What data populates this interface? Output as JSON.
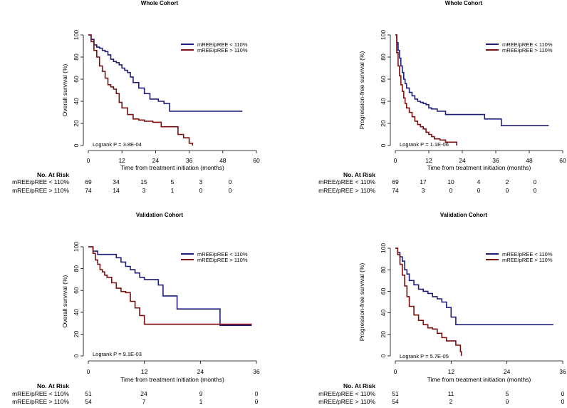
{
  "chart_data": [
    {
      "type": "line",
      "step": true,
      "title": "Whole Cohort",
      "xlabel": "Time from treatment initiation (months)",
      "ylabel": "Overall survival (%)",
      "xlim": [
        0,
        60
      ],
      "ylim": [
        0,
        100
      ],
      "xticks": [
        "0",
        "12",
        "24",
        "36",
        "48",
        "60"
      ],
      "yticks": [
        "0",
        "20",
        "40",
        "60",
        "80",
        "100"
      ],
      "annotation": "Logrank P = 3.8E-04",
      "legend_position": "top-right",
      "series": [
        {
          "name": "mREE/pREE < 110%",
          "color": "#1f1f7a",
          "x": [
            0,
            1,
            2,
            3,
            4,
            5,
            6,
            7,
            8,
            9,
            10,
            11,
            12,
            13,
            14,
            15,
            16,
            18,
            20,
            22,
            25,
            27,
            29,
            55
          ],
          "y": [
            100,
            96,
            91,
            89,
            88,
            86,
            85,
            82,
            78,
            76,
            75,
            73,
            70,
            68,
            66,
            62,
            57,
            52,
            47,
            42,
            40,
            38,
            31,
            31
          ]
        },
        {
          "name": "mREE/pREE > 110%",
          "color": "#7a1010",
          "x": [
            0,
            1,
            2,
            3,
            4,
            5,
            6,
            7,
            8,
            9,
            10,
            11,
            12,
            14,
            16,
            18,
            20,
            23,
            26,
            28,
            32,
            34,
            36,
            37,
            37.2
          ],
          "y": [
            100,
            94,
            86,
            80,
            72,
            67,
            61,
            55,
            53,
            51,
            47,
            39,
            34,
            28,
            24,
            23,
            22,
            21,
            17,
            17,
            10,
            7,
            2,
            2,
            0
          ]
        }
      ],
      "risk_table": {
        "header": "No. At Risk",
        "columns": [
          "0",
          "12",
          "24",
          "36",
          "48",
          "60"
        ],
        "rows": [
          {
            "label": "mREE/pREE < 110%",
            "values": [
              "69",
              "34",
              "15",
              "5",
              "3",
              "0"
            ]
          },
          {
            "label": "mREE/pREE > 110%",
            "values": [
              "74",
              "14",
              "3",
              "1",
              "0",
              "0"
            ]
          }
        ]
      }
    },
    {
      "type": "line",
      "step": true,
      "title": "Whole Cohort",
      "xlabel": "Time from treatment initiation (months)",
      "ylabel": "Progression-free survival (%)",
      "xlim": [
        0,
        60
      ],
      "ylim": [
        0,
        100
      ],
      "xticks": [
        "0",
        "12",
        "24",
        "36",
        "48",
        "60"
      ],
      "yticks": [
        "0",
        "20",
        "40",
        "60",
        "80",
        "100"
      ],
      "annotation": "Logrank P = 1.1E-06",
      "legend_position": "top-right",
      "series": [
        {
          "name": "mREE/pREE < 110%",
          "color": "#1f1f7a",
          "x": [
            0,
            0.5,
            1,
            1.5,
            2,
            2.5,
            3,
            3.5,
            4,
            5,
            6,
            7,
            8,
            9,
            10,
            11,
            12,
            13,
            15,
            18,
            25,
            32,
            38,
            55
          ],
          "y": [
            100,
            93,
            86,
            79,
            72,
            66,
            60,
            56,
            52,
            48,
            45,
            42,
            40,
            39,
            38,
            37,
            34,
            33,
            31,
            28,
            28,
            24,
            18,
            18
          ]
        },
        {
          "name": "mREE/pREE > 110%",
          "color": "#7a1010",
          "x": [
            0,
            0.5,
            1,
            1.5,
            2,
            2.5,
            3,
            3.5,
            4,
            5,
            6,
            7,
            8,
            9,
            10,
            11,
            12,
            13,
            14,
            16,
            18,
            21,
            22
          ],
          "y": [
            100,
            84,
            72,
            63,
            55,
            49,
            43,
            38,
            34,
            30,
            26,
            22,
            19,
            17,
            15,
            12,
            10,
            8,
            6,
            5,
            3,
            3,
            0
          ]
        }
      ],
      "risk_table": {
        "header": "No. At Risk",
        "columns": [
          "0",
          "12",
          "24",
          "36",
          "48",
          "60"
        ],
        "rows": [
          {
            "label": "mREE/pREE < 110%",
            "values": [
              "69",
              "17",
              "10",
              "4",
              "2",
              "0"
            ]
          },
          {
            "label": "mREE/pREE > 110%",
            "values": [
              "74",
              "3",
              "0",
              "0",
              "0",
              "0"
            ]
          }
        ]
      }
    },
    {
      "type": "line",
      "step": true,
      "title": "Validation Cohort",
      "xlabel": "Time from treatment initiation (months)",
      "ylabel": "Overall survival (%)",
      "xlim": [
        0,
        36
      ],
      "ylim": [
        0,
        100
      ],
      "xticks": [
        "0",
        "12",
        "24",
        "36"
      ],
      "yticks": [
        "0",
        "20",
        "40",
        "60",
        "80",
        "100"
      ],
      "annotation": "Logrank P = 9.1E-03",
      "legend_position": "top-right",
      "series": [
        {
          "name": "mREE/pREE < 110%",
          "color": "#1f1f7a",
          "x": [
            0,
            1,
            2,
            3,
            5,
            6,
            7,
            8,
            9,
            10,
            11,
            12,
            14,
            15,
            16,
            18,
            19,
            28,
            28.2,
            35
          ],
          "y": [
            100,
            96,
            93,
            93,
            93,
            90,
            86,
            82,
            79,
            76,
            72,
            70,
            70,
            65,
            55,
            55,
            43,
            43,
            28,
            28
          ]
        },
        {
          "name": "mREE/pREE > 110%",
          "color": "#7a1010",
          "x": [
            0,
            1,
            1.5,
            2,
            2.5,
            3,
            3.5,
            4,
            5,
            6,
            7,
            8,
            9,
            10,
            11,
            12,
            35
          ],
          "y": [
            100,
            94,
            88,
            84,
            79,
            77,
            74,
            72,
            67,
            62,
            59,
            58,
            50,
            44,
            37,
            29,
            29
          ]
        }
      ],
      "risk_table": {
        "header": "No. At Risk",
        "columns": [
          "0",
          "12",
          "24",
          "36"
        ],
        "rows": [
          {
            "label": "mREE/pREE < 110%",
            "values": [
              "51",
              "24",
              "9",
              "0"
            ]
          },
          {
            "label": "mREE/pREE > 110%",
            "values": [
              "54",
              "7",
              "1",
              "0"
            ]
          }
        ]
      }
    },
    {
      "type": "line",
      "step": true,
      "title": "Validation Cohort",
      "xlabel": "Time from treatment initiation (months)",
      "ylabel": "Progression-free survival (%)",
      "xlim": [
        0,
        36
      ],
      "ylim": [
        0,
        100
      ],
      "xticks": [
        "0",
        "12",
        "24",
        "36"
      ],
      "yticks": [
        "0",
        "20",
        "40",
        "60",
        "80",
        "100"
      ],
      "annotation": "Logrank P = 5.7E-05",
      "legend_position": "top-right",
      "series": [
        {
          "name": "mREE/pREE < 110%",
          "color": "#1f1f7a",
          "x": [
            0,
            0.5,
            1,
            1.5,
            2,
            2.5,
            3,
            4,
            5,
            6,
            7,
            8,
            9,
            10,
            11,
            12,
            13,
            34
          ],
          "y": [
            100,
            96,
            92,
            88,
            80,
            76,
            70,
            66,
            62,
            60,
            58,
            55,
            53,
            50,
            45,
            36,
            29,
            29
          ]
        },
        {
          "name": "mREE/pREE > 110%",
          "color": "#7a1010",
          "x": [
            0,
            0.5,
            1,
            1.5,
            2,
            2.5,
            3,
            4,
            5,
            6,
            7,
            8,
            9,
            10,
            11,
            13,
            14,
            14.2
          ],
          "y": [
            100,
            94,
            85,
            75,
            65,
            55,
            46,
            38,
            33,
            29,
            26,
            25,
            21,
            17,
            14,
            10,
            4,
            0
          ]
        }
      ],
      "risk_table": {
        "header": "No. At Risk",
        "columns": [
          "0",
          "12",
          "24",
          "36"
        ],
        "rows": [
          {
            "label": "mREE/pREE < 110%",
            "values": [
              "51",
              "11",
              "5",
              "0"
            ]
          },
          {
            "label": "mREE/pREE > 110%",
            "values": [
              "54",
              "2",
              "0",
              "0"
            ]
          }
        ]
      }
    }
  ]
}
